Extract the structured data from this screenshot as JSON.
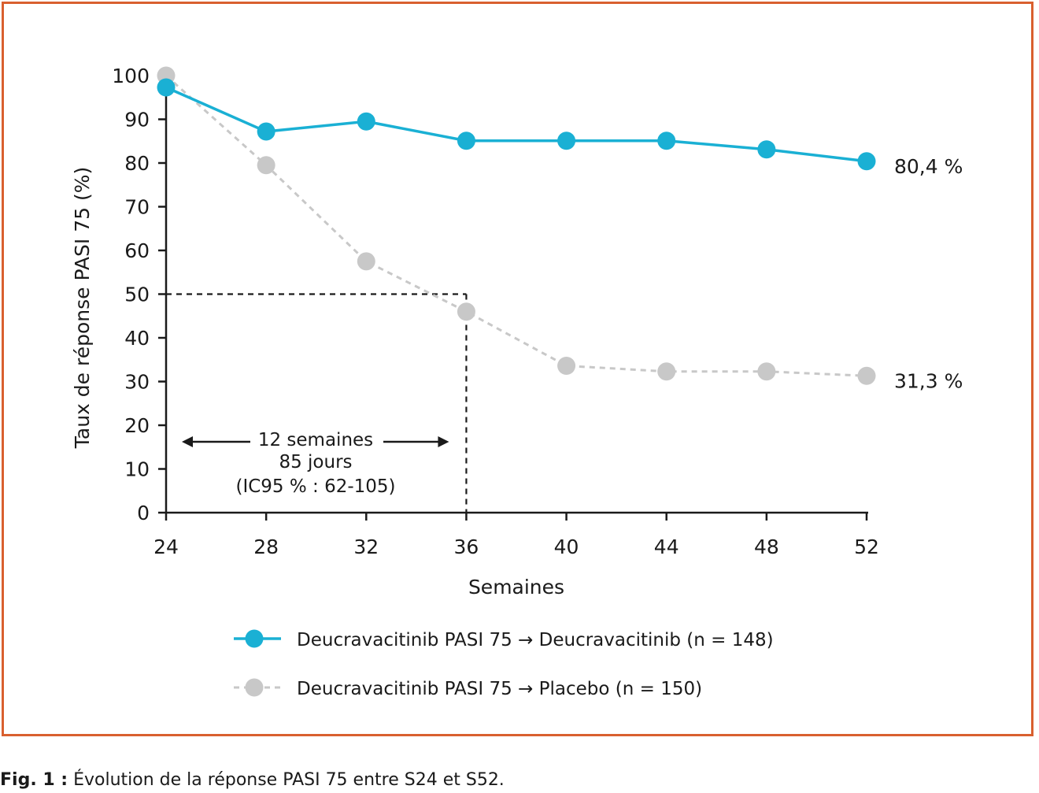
{
  "chart_data": {
    "type": "line",
    "xlabel": "Semaines",
    "ylabel": "Taux de réponse PASI 75 (%)",
    "x": [
      24,
      28,
      32,
      36,
      40,
      44,
      48,
      52
    ],
    "x_ticks": [
      "24",
      "28",
      "32",
      "36",
      "40",
      "44",
      "48",
      "52"
    ],
    "ylim": [
      0,
      100
    ],
    "y_ticks": [
      "0",
      "10",
      "20",
      "30",
      "40",
      "50",
      "60",
      "70",
      "80",
      "90",
      "100"
    ],
    "grid": false,
    "legend_position": "bottom",
    "series": [
      {
        "name": "Deucravacitinib PASI 75 → Deucravacitinib (n = 148)",
        "values": [
          97.3,
          87.2,
          89.5,
          85.1,
          85.1,
          85.1,
          83.1,
          80.4
        ],
        "color": "#1ab0d4",
        "style": "solid",
        "end_label": "80,4 %"
      },
      {
        "name": "Deucravacitinib PASI 75 → Placebo (n = 150)",
        "values": [
          100,
          79.5,
          57.5,
          46.0,
          33.6,
          32.3,
          32.3,
          31.3
        ],
        "color": "#c8c8c8",
        "style": "dashed",
        "end_label": "31,3 %"
      }
    ],
    "annotation": {
      "threshold_y": 50,
      "threshold_x": 36,
      "text_lines": [
        "12 semaines",
        "85 jours",
        "(IC95 % : 62-105)"
      ]
    }
  },
  "frame_color": "#d9602f",
  "caption": {
    "bold": "Fig. 1 :",
    "text": " Évolution de la réponse PASI 75 entre S24 et S52."
  }
}
